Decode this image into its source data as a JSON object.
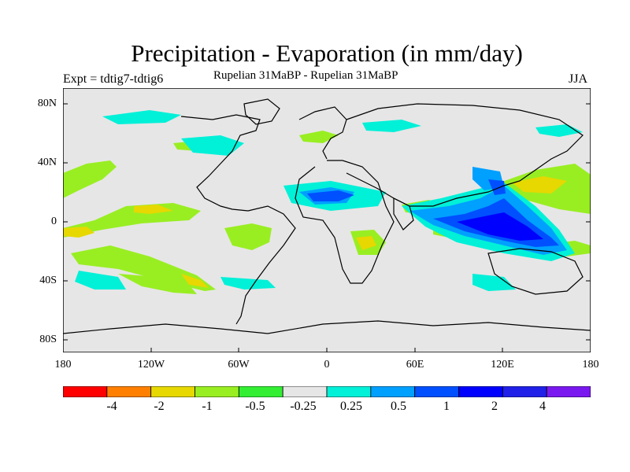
{
  "title": "Precipitation - Evaporation (in mm/day)",
  "experiment_label": "Expt = tdtig7-tdtig6",
  "subtitle": "Rupelian  31MaBP - Rupelian  31MaBP",
  "season": "JJA",
  "lat_labels": [
    "80N",
    "40N",
    "0",
    "40S",
    "80S"
  ],
  "lon_labels": [
    "180",
    "120W",
    "60W",
    "0",
    "60E",
    "120E",
    "180"
  ],
  "colorbar": {
    "colors": [
      "#ff0000",
      "#ff8000",
      "#e6d800",
      "#99ee22",
      "#33ee33",
      "#e6e6e6",
      "#00f0d8",
      "#00a0ff",
      "#0050ff",
      "#0000ff",
      "#2020e8",
      "#7a18f0"
    ],
    "labels": [
      "-4",
      "-2",
      "-1",
      "-0.5",
      "-0.25",
      "0.25",
      "0.5",
      "1",
      "2",
      "4"
    ]
  },
  "map_colors": {
    "background": "#e6e6e6",
    "coastline": "#000000"
  }
}
